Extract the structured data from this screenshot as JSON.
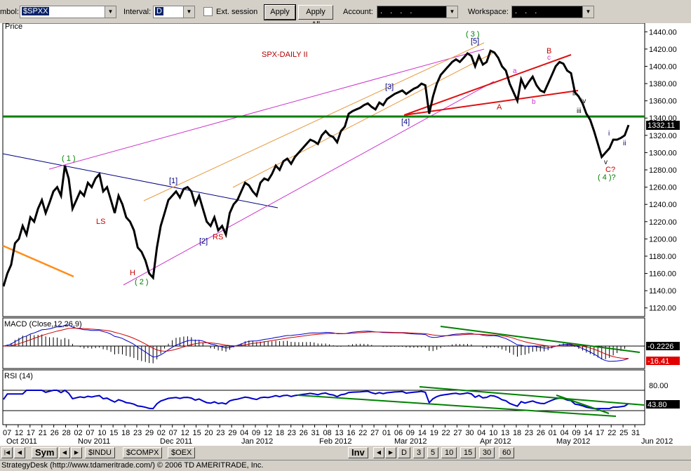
{
  "toolbar": {
    "symbol_label": "mbol:",
    "symbol_value": "$SPXX",
    "interval_label": "Interval:",
    "interval_value": "D",
    "ext_session_label": "Ext. session",
    "apply_label": "Apply",
    "apply_all_label": "Apply All",
    "account_label": "Account:",
    "account_value": ". . . .",
    "workspace_label": "Workspace:",
    "workspace_value": ". . ."
  },
  "chart": {
    "price_label": "Price",
    "title": "SPX-DAILY II",
    "last_price": "1332.11",
    "macd_label": "MACD (Close,12,26,9)",
    "macd_value1": "-0.2226",
    "macd_value2": "-16.41",
    "rsi_label": "RSI (14)",
    "rsi_upper": "80.00",
    "rsi_value": "43.80",
    "annotations": {
      "w1": "( 1 )",
      "w2": "( 2 )",
      "w3": "( 3 )",
      "w4": "( 4 )?",
      "ls": "LS",
      "h": "H",
      "rs": "RS",
      "b1": "[1]",
      "b2": "[2]",
      "b3": "[3]",
      "b4": "[4]",
      "b5": "[5]",
      "a_big": "A",
      "b_big": "B",
      "c_q": "C?",
      "a_small": "a",
      "b_small": "b",
      "c_small": "c",
      "ii": "ii",
      "iii": "iii",
      "iv": "iv",
      "v": "v",
      "i_low": "i",
      "ii_low": "ii"
    }
  },
  "chart_data": {
    "type": "line",
    "title": "SPX-DAILY II",
    "ylabel": "Price",
    "ylim": [
      1110,
      1450
    ],
    "yticks": [
      "1440.00",
      "1420.00",
      "1400.00",
      "1380.00",
      "1360.00",
      "1340.00",
      "1320.00",
      "1300.00",
      "1280.00",
      "1260.00",
      "1240.00",
      "1220.00",
      "1200.00",
      "1180.00",
      "1160.00",
      "1140.00",
      "1120.00"
    ],
    "day_ticks": [
      "07",
      "12",
      "17",
      "21",
      "26",
      "28",
      "02",
      "07",
      "10",
      "15",
      "18",
      "23",
      "29",
      "02",
      "07",
      "12",
      "15",
      "20",
      "23",
      "29",
      "04",
      "09",
      "12",
      "18",
      "23",
      "26",
      "31",
      "08",
      "13",
      "16",
      "22",
      "27",
      "01",
      "06",
      "09",
      "14",
      "19",
      "22",
      "27",
      "30",
      "04",
      "10",
      "13",
      "18",
      "23",
      "26",
      "01",
      "04",
      "09",
      "14",
      "17",
      "22",
      "25",
      "31"
    ],
    "month_ticks": [
      "Oct 2011",
      "Nov 2011",
      "Dec 2011",
      "Jan 2012",
      "Feb 2012",
      "Mar 2012",
      "Apr 2012",
      "May 2012",
      "Jun 2012"
    ],
    "series": [
      {
        "values": [
          1145,
          1160,
          1170,
          1195,
          1200,
          1215,
          1205,
          1225,
          1220,
          1235,
          1245,
          1230,
          1242,
          1255,
          1260,
          1250,
          1285,
          1270,
          1235,
          1245,
          1255,
          1250,
          1265,
          1260,
          1270,
          1275,
          1255,
          1260,
          1245,
          1230,
          1250,
          1240,
          1225,
          1220,
          1210,
          1190,
          1185,
          1175,
          1160,
          1155,
          1190,
          1215,
          1230,
          1245,
          1250,
          1255,
          1248,
          1258,
          1260,
          1255,
          1240,
          1250,
          1235,
          1220,
          1215,
          1225,
          1210,
          1215,
          1205,
          1230,
          1240,
          1245,
          1255,
          1265,
          1262,
          1255,
          1250,
          1265,
          1270,
          1268,
          1275,
          1285,
          1280,
          1290,
          1293,
          1287,
          1295,
          1300,
          1305,
          1310,
          1315,
          1313,
          1310,
          1320,
          1325,
          1320,
          1318,
          1312,
          1325,
          1330,
          1345,
          1348,
          1350,
          1352,
          1355,
          1357,
          1353,
          1350,
          1358,
          1355,
          1362,
          1365,
          1368,
          1370,
          1372,
          1368,
          1371,
          1374,
          1376,
          1380,
          1378,
          1345,
          1365,
          1380,
          1390,
          1395,
          1400,
          1405,
          1408,
          1405,
          1410,
          1415,
          1412,
          1400,
          1412,
          1402,
          1405,
          1418,
          1416,
          1410,
          1400,
          1395,
          1380,
          1370,
          1360,
          1385,
          1375,
          1382,
          1388,
          1378,
          1372,
          1370,
          1380,
          1390,
          1400,
          1405,
          1403,
          1395,
          1392,
          1370,
          1365,
          1357,
          1345,
          1338,
          1325,
          1310,
          1295,
          1300,
          1305,
          1315,
          1315,
          1317,
          1320,
          1332
        ],
        "color": "#000000"
      }
    ],
    "macd": {
      "last_macd": -0.2226,
      "last_signal": -16.41
    },
    "rsi": {
      "upper_band": 80.0,
      "last": 43.8
    }
  },
  "bottom": {
    "sym_tab": "Sym",
    "tabs": [
      "$INDU",
      "$COMPX",
      "$OEX"
    ],
    "inv_tab": "Inv",
    "intervals": [
      "D",
      "3",
      "5",
      "10",
      "15",
      "30",
      "60"
    ]
  },
  "status": {
    "text": "StrategyDesk (http://www.tdameritrade.com/) © 2006 TD AMERITRADE, Inc."
  }
}
